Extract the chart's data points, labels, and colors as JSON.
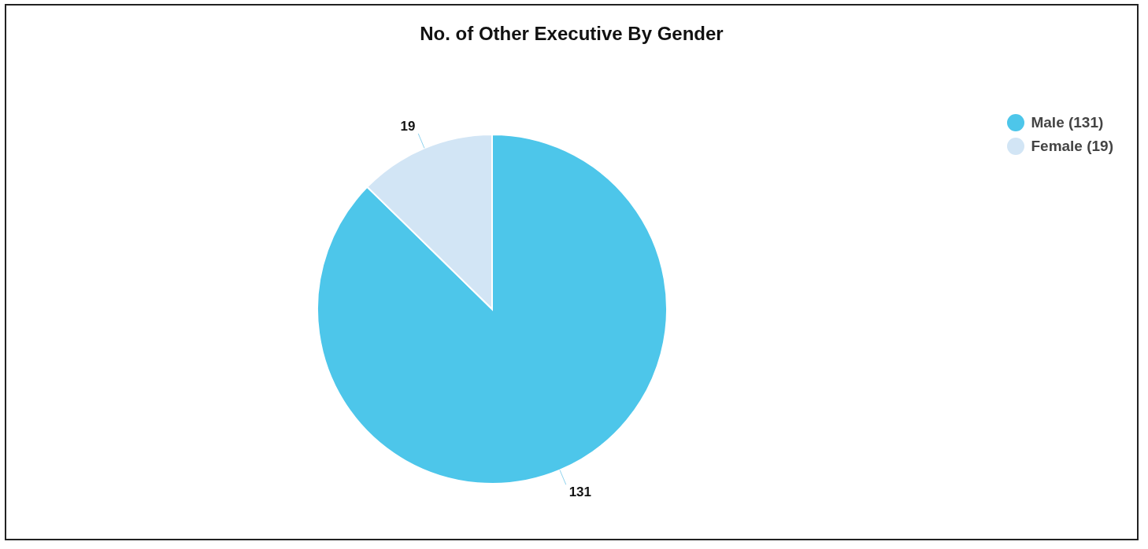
{
  "chart_data": {
    "type": "pie",
    "title": "No. of Other Executive By Gender",
    "categories": [
      "Male (131)",
      "Female (19)"
    ],
    "values": [
      131,
      19
    ],
    "colors": [
      "#4dc6ea",
      "#d2e5f5"
    ],
    "data_labels": true,
    "legend": "top right"
  }
}
